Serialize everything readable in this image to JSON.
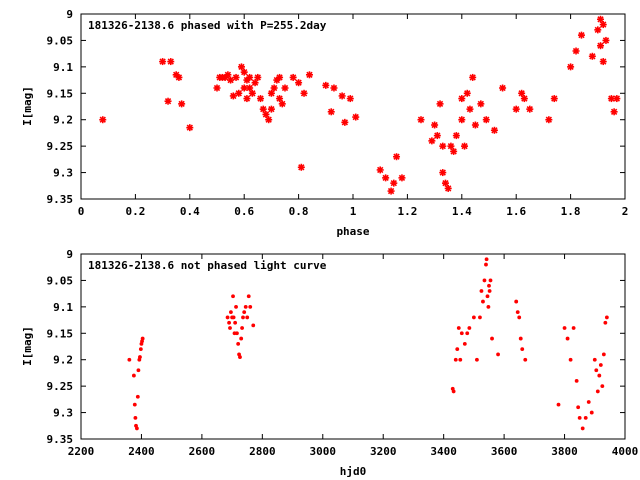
{
  "chart_data": [
    {
      "type": "scatter",
      "title": "181326-2138.6 phased with P=255.2day",
      "xlabel": "phase",
      "ylabel": "I[mag]",
      "xlim": [
        0,
        2
      ],
      "ylim": [
        9.35,
        9
      ],
      "y_inverted": true,
      "xticks": [
        0,
        0.2,
        0.4,
        0.6,
        0.8,
        1,
        1.2,
        1.4,
        1.6,
        1.8,
        2
      ],
      "xtick_labels": [
        "0",
        "0.2",
        "0.4",
        "0.6",
        "0.8",
        "1",
        "1.2",
        "1.4",
        "1.6",
        "1.8",
        "2"
      ],
      "yticks": [
        9,
        9.05,
        9.1,
        9.15,
        9.2,
        9.25,
        9.3,
        9.35
      ],
      "ytick_labels": [
        "9",
        "9.05",
        "9.1",
        "9.15",
        "9.2",
        "9.25",
        "9.3",
        "9.35"
      ],
      "grid": false,
      "marker": "star",
      "color": "#ff0000",
      "series": [
        {
          "x": [
            0.08,
            0.3,
            0.32,
            0.33,
            0.35,
            0.36,
            0.37,
            0.4,
            0.5,
            0.51,
            0.52,
            0.53,
            0.54,
            0.55,
            0.56,
            0.57,
            0.58,
            0.59,
            0.6,
            0.6,
            0.61,
            0.61,
            0.62,
            0.62,
            0.63,
            0.64,
            0.65,
            0.66,
            0.67,
            0.68,
            0.69,
            0.7,
            0.7,
            0.71,
            0.72,
            0.73,
            0.73,
            0.74,
            0.75,
            0.78,
            0.8,
            0.81,
            0.82,
            0.84,
            0.9,
            0.92,
            0.93,
            0.96,
            0.97,
            0.99,
            1.01,
            1.1,
            1.12,
            1.14,
            1.15,
            1.16,
            1.18,
            1.25,
            1.29,
            1.3,
            1.31,
            1.32,
            1.33,
            1.33,
            1.34,
            1.35,
            1.36,
            1.37,
            1.38,
            1.4,
            1.4,
            1.41,
            1.42,
            1.43,
            1.44,
            1.45,
            1.47,
            1.49,
            1.52,
            1.55,
            1.6,
            1.62,
            1.63,
            1.65,
            1.72,
            1.74,
            1.8,
            1.82,
            1.84,
            1.88,
            1.9,
            1.91,
            1.91,
            1.92,
            1.92,
            1.93,
            1.95,
            1.96,
            1.97
          ],
          "y": [
            9.2,
            9.09,
            9.165,
            9.09,
            9.115,
            9.12,
            9.17,
            9.215,
            9.14,
            9.12,
            9.12,
            9.12,
            9.115,
            9.125,
            9.155,
            9.12,
            9.15,
            9.1,
            9.11,
            9.14,
            9.125,
            9.16,
            9.14,
            9.12,
            9.15,
            9.13,
            9.12,
            9.16,
            9.18,
            9.19,
            9.2,
            9.15,
            9.18,
            9.14,
            9.125,
            9.16,
            9.12,
            9.17,
            9.14,
            9.12,
            9.13,
            9.29,
            9.15,
            9.115,
            9.135,
            9.185,
            9.14,
            9.155,
            9.205,
            9.16,
            9.195,
            9.295,
            9.31,
            9.335,
            9.32,
            9.27,
            9.31,
            9.2,
            9.24,
            9.21,
            9.23,
            9.17,
            9.3,
            9.25,
            9.32,
            9.33,
            9.25,
            9.26,
            9.23,
            9.2,
            9.16,
            9.25,
            9.15,
            9.18,
            9.12,
            9.21,
            9.17,
            9.2,
            9.22,
            9.14,
            9.18,
            9.15,
            9.16,
            9.18,
            9.2,
            9.16,
            9.1,
            9.07,
            9.04,
            9.08,
            9.03,
            9.01,
            9.06,
            9.02,
            9.09,
            9.05,
            9.16,
            9.185,
            9.16
          ]
        }
      ]
    },
    {
      "type": "scatter",
      "title": "181326-2138.6 not phased light curve",
      "xlabel": "hjd0",
      "ylabel": "I[mag]",
      "xlim": [
        2200,
        4000
      ],
      "ylim": [
        9.35,
        9
      ],
      "y_inverted": true,
      "xticks": [
        2200,
        2400,
        2600,
        2800,
        3000,
        3200,
        3400,
        3600,
        3800,
        4000
      ],
      "xtick_labels": [
        "2200",
        "2400",
        "2600",
        "2800",
        "3000",
        "3200",
        "3400",
        "3600",
        "3800",
        "4000"
      ],
      "yticks": [
        9,
        9.05,
        9.1,
        9.15,
        9.2,
        9.25,
        9.3,
        9.35
      ],
      "ytick_labels": [
        "9",
        "9.05",
        "9.1",
        "9.15",
        "9.2",
        "9.25",
        "9.3",
        "9.35"
      ],
      "grid": false,
      "marker": "dot",
      "color": "#ff0000",
      "series": [
        {
          "x": [
            2360,
            2375,
            2378,
            2380,
            2382,
            2385,
            2388,
            2390,
            2393,
            2395,
            2398,
            2400,
            2402,
            2404,
            2685,
            2690,
            2693,
            2696,
            2700,
            2703,
            2705,
            2708,
            2710,
            2713,
            2716,
            2720,
            2723,
            2726,
            2730,
            2733,
            2736,
            2740,
            2745,
            2750,
            2755,
            2760,
            2770,
            3430,
            3433,
            3440,
            3445,
            3450,
            3455,
            3460,
            3470,
            3478,
            3485,
            3500,
            3510,
            3520,
            3525,
            3530,
            3535,
            3540,
            3542,
            3545,
            3548,
            3550,
            3552,
            3555,
            3560,
            3580,
            3640,
            3645,
            3650,
            3655,
            3660,
            3670,
            3780,
            3800,
            3810,
            3820,
            3830,
            3840,
            3845,
            3850,
            3860,
            3870,
            3880,
            3890,
            3900,
            3905,
            3910,
            3915,
            3920,
            3925,
            3930,
            3935,
            3940
          ],
          "y": [
            9.2,
            9.23,
            9.285,
            9.31,
            9.325,
            9.33,
            9.27,
            9.22,
            9.2,
            9.195,
            9.18,
            9.17,
            9.165,
            9.16,
            9.12,
            9.13,
            9.14,
            9.11,
            9.12,
            9.08,
            9.12,
            9.15,
            9.13,
            9.1,
            9.15,
            9.17,
            9.19,
            9.195,
            9.16,
            9.14,
            9.12,
            9.11,
            9.1,
            9.12,
            9.08,
            9.1,
            9.135,
            9.255,
            9.26,
            9.2,
            9.18,
            9.14,
            9.2,
            9.15,
            9.17,
            9.15,
            9.14,
            9.12,
            9.2,
            9.12,
            9.07,
            9.09,
            9.05,
            9.02,
            9.01,
            9.08,
            9.1,
            9.06,
            9.07,
            9.05,
            9.16,
            9.19,
            9.09,
            9.11,
            9.12,
            9.16,
            9.18,
            9.2,
            9.285,
            9.14,
            9.16,
            9.2,
            9.14,
            9.24,
            9.29,
            9.31,
            9.33,
            9.31,
            9.28,
            9.3,
            9.2,
            9.22,
            9.26,
            9.23,
            9.21,
            9.25,
            9.19,
            9.13,
            9.12
          ]
        }
      ]
    }
  ]
}
